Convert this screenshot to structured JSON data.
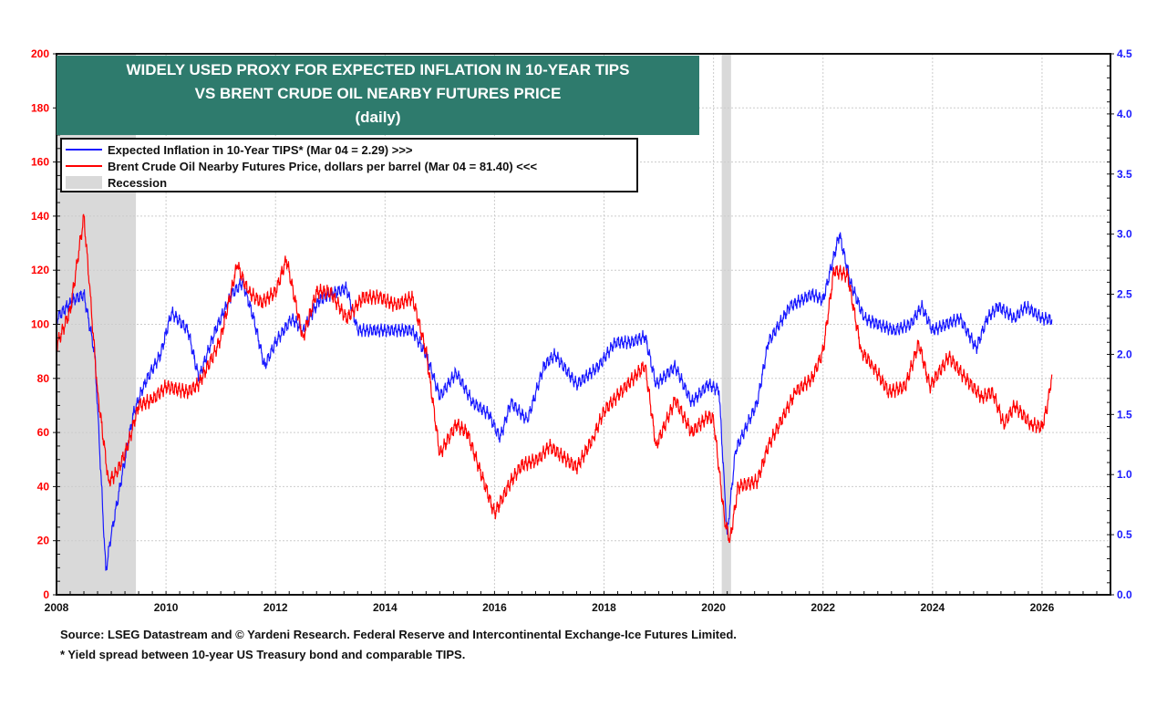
{
  "chart_data": {
    "type": "line",
    "title": [
      "WIDELY USED PROXY FOR EXPECTED INFLATION IN 10-YEAR TIPS",
      "VS BRENT CRUDE OIL NEARBY FUTURES PRICE",
      "(daily)"
    ],
    "xlim": [
      2008,
      2027.25
    ],
    "x_ticks": [
      "2008",
      "2010",
      "2012",
      "2014",
      "2016",
      "2018",
      "2020",
      "2022",
      "2024",
      "2026"
    ],
    "y_left": {
      "lim": [
        0,
        200
      ],
      "ticks": [
        "0",
        "20",
        "40",
        "60",
        "80",
        "100",
        "120",
        "140",
        "160",
        "180",
        "200"
      ],
      "color": "#ff0000"
    },
    "y_right": {
      "lim": [
        0,
        4.5
      ],
      "ticks": [
        "0.0",
        "0.5",
        "1.0",
        "1.5",
        "2.0",
        "2.5",
        "3.0",
        "3.5",
        "4.0",
        "4.5"
      ],
      "color": "#1a1aff"
    },
    "grid": true,
    "legend_placement": "top-left",
    "recessions": [
      [
        2008.0,
        2009.45
      ],
      [
        2020.15,
        2020.32
      ]
    ],
    "series": [
      {
        "name": "Expected Inflation in 10-Year TIPS* (Mar 04 = 2.29) >>>",
        "axis": "right",
        "color": "#1a1aff",
        "x": [
          2008.0,
          2008.3,
          2008.5,
          2008.7,
          2008.9,
          2009.0,
          2009.2,
          2009.4,
          2009.6,
          2009.9,
          2010.1,
          2010.4,
          2010.6,
          2010.9,
          2011.2,
          2011.4,
          2011.6,
          2011.8,
          2012.0,
          2012.3,
          2012.5,
          2012.8,
          2013.0,
          2013.3,
          2013.5,
          2013.8,
          2014.0,
          2014.5,
          2014.75,
          2015.0,
          2015.3,
          2015.6,
          2015.9,
          2016.1,
          2016.3,
          2016.6,
          2016.9,
          2017.1,
          2017.5,
          2017.9,
          2018.2,
          2018.5,
          2018.75,
          2018.95,
          2019.3,
          2019.6,
          2019.9,
          2020.1,
          2020.2,
          2020.25,
          2020.4,
          2020.8,
          2021.0,
          2021.4,
          2021.8,
          2022.0,
          2022.3,
          2022.5,
          2022.75,
          2023.0,
          2023.3,
          2023.6,
          2023.8,
          2024.0,
          2024.5,
          2024.8,
          2025.0,
          2025.2,
          2025.5,
          2025.7,
          2026.0,
          2026.18
        ],
        "y": [
          2.3,
          2.45,
          2.5,
          2.0,
          0.2,
          0.5,
          1.0,
          1.5,
          1.75,
          2.0,
          2.35,
          2.2,
          1.8,
          2.2,
          2.5,
          2.6,
          2.3,
          1.9,
          2.1,
          2.3,
          2.2,
          2.45,
          2.5,
          2.55,
          2.2,
          2.2,
          2.2,
          2.2,
          2.0,
          1.65,
          1.85,
          1.6,
          1.5,
          1.3,
          1.6,
          1.45,
          1.9,
          2.0,
          1.75,
          1.9,
          2.1,
          2.1,
          2.15,
          1.75,
          1.9,
          1.6,
          1.75,
          1.7,
          0.9,
          0.5,
          1.2,
          1.6,
          2.1,
          2.4,
          2.5,
          2.45,
          3.0,
          2.6,
          2.3,
          2.25,
          2.2,
          2.25,
          2.4,
          2.2,
          2.3,
          2.05,
          2.3,
          2.4,
          2.3,
          2.4,
          2.3,
          2.29
        ]
      },
      {
        "name": "Brent Crude Oil Nearby Futures Price, dollars per barrel (Mar 04 = 81.40) <<<",
        "axis": "left",
        "color": "#ff0000",
        "x": [
          2008.0,
          2008.25,
          2008.5,
          2008.6,
          2008.75,
          2008.95,
          2009.1,
          2009.3,
          2009.5,
          2009.75,
          2010.0,
          2010.4,
          2010.6,
          2010.9,
          2011.0,
          2011.3,
          2011.5,
          2011.75,
          2012.0,
          2012.2,
          2012.5,
          2012.75,
          2013.0,
          2013.3,
          2013.6,
          2013.9,
          2014.2,
          2014.5,
          2014.75,
          2015.0,
          2015.3,
          2015.5,
          2015.7,
          2016.0,
          2016.3,
          2016.5,
          2016.8,
          2017.0,
          2017.5,
          2017.8,
          2018.0,
          2018.4,
          2018.75,
          2018.95,
          2019.3,
          2019.6,
          2019.9,
          2020.0,
          2020.2,
          2020.3,
          2020.45,
          2020.8,
          2021.0,
          2021.5,
          2021.8,
          2022.0,
          2022.2,
          2022.45,
          2022.7,
          2022.9,
          2023.2,
          2023.5,
          2023.75,
          2023.95,
          2024.3,
          2024.6,
          2024.9,
          2025.1,
          2025.3,
          2025.5,
          2025.8,
          2026.0,
          2026.1,
          2026.18
        ],
        "y": [
          92,
          105,
          140,
          115,
          75,
          42,
          45,
          55,
          70,
          72,
          77,
          75,
          78,
          90,
          95,
          122,
          112,
          108,
          112,
          124,
          95,
          112,
          112,
          102,
          110,
          110,
          107,
          110,
          90,
          52,
          63,
          60,
          48,
          30,
          42,
          48,
          50,
          55,
          47,
          58,
          68,
          77,
          85,
          55,
          72,
          60,
          66,
          65,
          28,
          20,
          40,
          42,
          55,
          75,
          80,
          90,
          120,
          118,
          90,
          85,
          75,
          77,
          93,
          77,
          88,
          80,
          73,
          75,
          63,
          70,
          63,
          62,
          70,
          81.4
        ]
      }
    ],
    "legend": {
      "recession_label": "Recession"
    },
    "footnotes": [
      "Source: LSEG Datastream and © Yardeni Research. Federal Reserve and Intercontinental Exchange-Ice Futures Limited.",
      "* Yield spread between 10-year US Treasury bond and comparable TIPS."
    ]
  }
}
